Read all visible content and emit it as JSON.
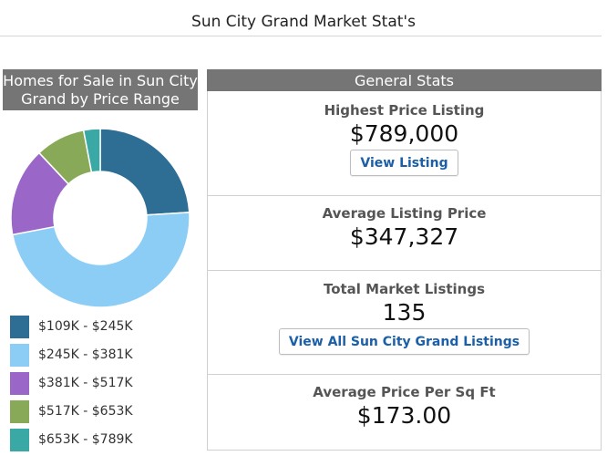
{
  "page": {
    "title": "Sun City Grand Market Stat's"
  },
  "price_range_panel": {
    "title": "Homes for Sale in Sun City Grand by Price Range",
    "colors": [
      "#2e6e94",
      "#8ccdf6",
      "#9a66c8",
      "#88aa58",
      "#3aa8a4"
    ]
  },
  "legend": [
    {
      "label": "$109K - $245K",
      "color": "#2e6e94"
    },
    {
      "label": "$245K - $381K",
      "color": "#8ccdf6"
    },
    {
      "label": "$381K - $517K",
      "color": "#9a66c8"
    },
    {
      "label": "$517K - $653K",
      "color": "#88aa58"
    },
    {
      "label": "$653K - $789K",
      "color": "#3aa8a4"
    }
  ],
  "chart_data": {
    "type": "pie",
    "categories": [
      "$109K - $245K",
      "$245K - $381K",
      "$381K - $517K",
      "$517K - $653K",
      "$653K - $789K"
    ],
    "values": [
      24,
      48,
      16,
      9,
      3
    ],
    "title": "Homes for Sale in Sun City Grand by Price Range"
  },
  "general_stats": {
    "title": "General Stats",
    "highest": {
      "label": "Highest Price Listing",
      "value": "$789,000",
      "button": "View Listing"
    },
    "average": {
      "label": "Average Listing Price",
      "value": "$347,327"
    },
    "total": {
      "label": "Total Market Listings",
      "value": "135",
      "button": "View All Sun City Grand Listings"
    },
    "per_sqft": {
      "label": "Average Price Per Sq Ft",
      "value": "$173.00"
    }
  }
}
